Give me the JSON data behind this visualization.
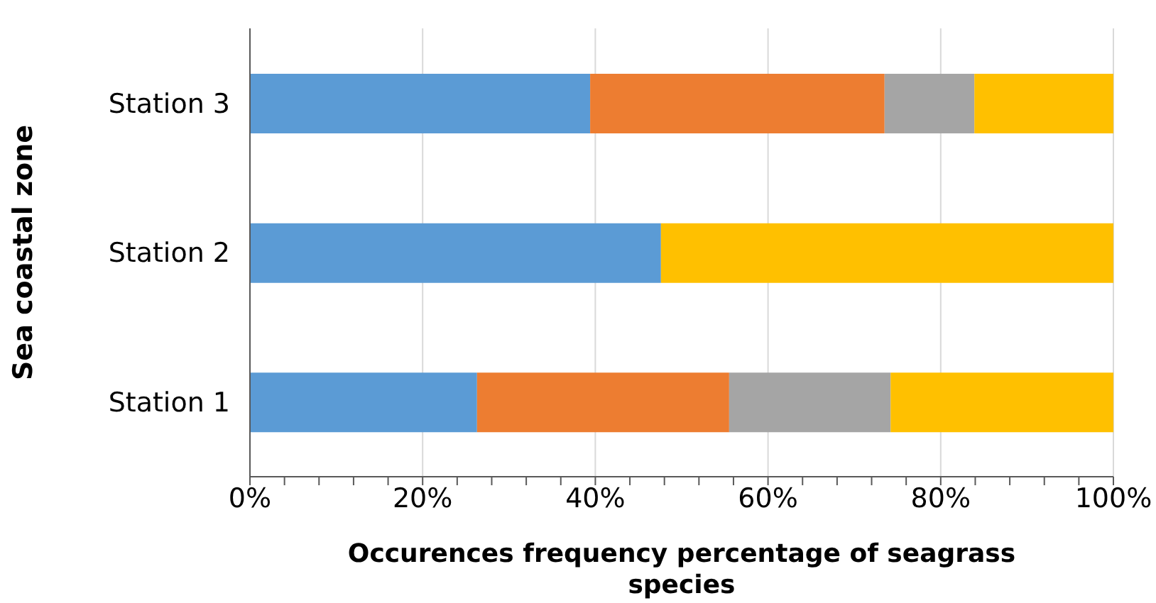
{
  "chart_data": {
    "type": "bar",
    "orientation": "horizontal",
    "stacked": true,
    "xlabel": "Occurences frequency percentage of seagrass species",
    "ylabel": "Sea coastal zone",
    "categories": [
      "Station 3",
      "Station 2",
      "Station 1"
    ],
    "series": [
      {
        "color": "#5b9bd5",
        "values": [
          39.4,
          47.6,
          26.3
        ]
      },
      {
        "color": "#ed7d31",
        "values": [
          34.1,
          0,
          29.2
        ]
      },
      {
        "color": "#a5a5a5",
        "values": [
          10.4,
          0,
          18.7
        ]
      },
      {
        "color": "#ffc000",
        "values": [
          16.1,
          52.4,
          25.8
        ]
      }
    ],
    "xlim": [
      0,
      100
    ],
    "xticks": [
      {
        "value": 0,
        "label": "0%"
      },
      {
        "value": 4,
        "label": null
      },
      {
        "value": 8,
        "label": null
      },
      {
        "value": 12,
        "label": null
      },
      {
        "value": 16,
        "label": null
      },
      {
        "value": 20,
        "label": "20%"
      },
      {
        "value": 24,
        "label": null
      },
      {
        "value": 28,
        "label": null
      },
      {
        "value": 32,
        "label": null
      },
      {
        "value": 36,
        "label": null
      },
      {
        "value": 40,
        "label": "40%"
      },
      {
        "value": 44,
        "label": null
      },
      {
        "value": 48,
        "label": null
      },
      {
        "value": 52,
        "label": null
      },
      {
        "value": 56,
        "label": null
      },
      {
        "value": 60,
        "label": "60%"
      },
      {
        "value": 64,
        "label": null
      },
      {
        "value": 68,
        "label": null
      },
      {
        "value": 72,
        "label": null
      },
      {
        "value": 76,
        "label": null
      },
      {
        "value": 80,
        "label": "80%"
      },
      {
        "value": 84,
        "label": null
      },
      {
        "value": 88,
        "label": null
      },
      {
        "value": 92,
        "label": null
      },
      {
        "value": 96,
        "label": null
      },
      {
        "value": 100,
        "label": "100%"
      }
    ],
    "grid": "x",
    "legend": false
  }
}
